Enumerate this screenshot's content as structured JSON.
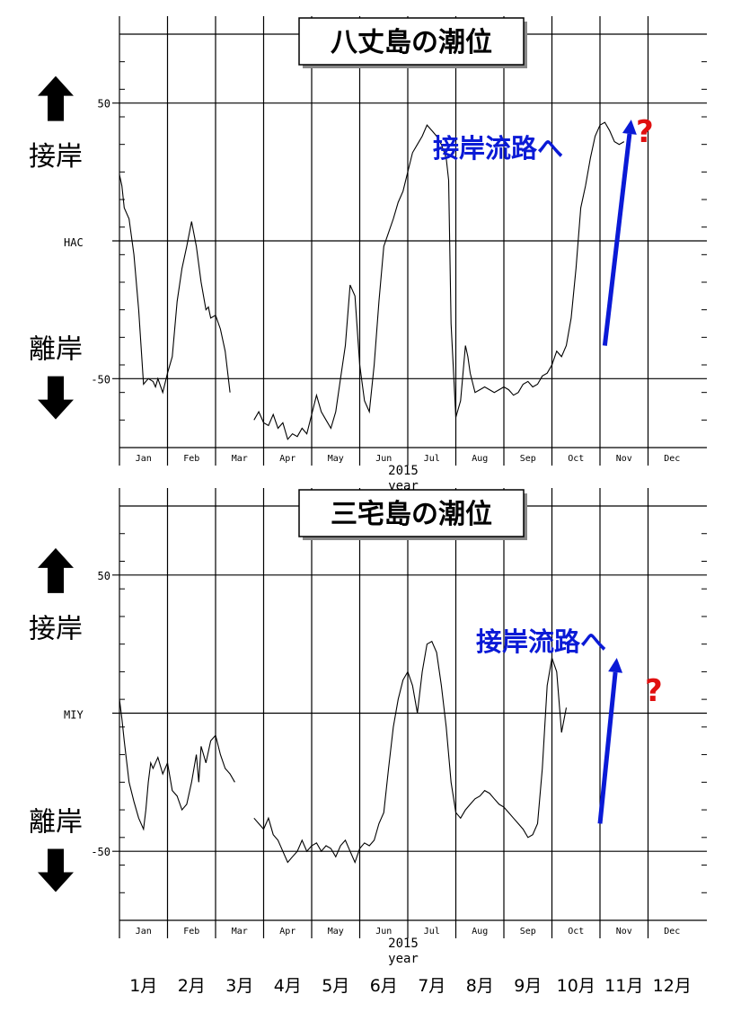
{
  "chart_data": [
    {
      "type": "line",
      "title": "八丈島の潮位",
      "station_label": "HAC",
      "xlabel": "year",
      "year_label": "2015",
      "ylim": [
        -75,
        75
      ],
      "yticks": [
        -50,
        0,
        50
      ],
      "month_ticks": [
        "Jan",
        "Feb",
        "Mar",
        "Apr",
        "May",
        "Jun",
        "Jul",
        "Aug",
        "Sep",
        "Oct",
        "Nov",
        "Dec"
      ],
      "upper_side_label": "接岸",
      "lower_side_label": "離岸",
      "annotation": "接岸流路へ",
      "question_mark": "?",
      "arrow": {
        "from": [
          10.1,
          -38
        ],
        "to": [
          10.65,
          44
        ]
      },
      "series": [
        {
          "x": [
            0.0,
            0.05,
            0.1,
            0.2,
            0.3,
            0.4,
            0.5,
            0.6,
            0.7,
            0.75,
            0.8,
            0.9,
            1.0,
            1.1,
            1.2,
            1.3,
            1.4,
            1.5,
            1.6,
            1.7,
            1.8,
            1.85,
            1.9,
            2.0,
            2.1,
            2.2,
            2.3,
            2.4,
            2.5,
            2.55
          ],
          "y": [
            24,
            20,
            12,
            8,
            -5,
            -25,
            -52,
            -50,
            -51,
            -53,
            -50,
            -55,
            -48,
            -42,
            -22,
            -10,
            -2,
            7,
            -2,
            -15,
            -25,
            -24,
            -28,
            -27,
            -32,
            -40,
            -55,
            null,
            null,
            null
          ]
        },
        {
          "x": [
            2.8,
            2.9,
            3.0,
            3.1,
            3.2,
            3.3,
            3.4,
            3.5,
            3.6,
            3.7,
            3.8,
            3.9,
            4.0,
            4.1,
            4.2,
            4.3,
            4.4,
            4.5,
            4.6,
            4.7,
            4.8,
            4.9,
            5.0,
            5.1,
            5.2,
            5.3,
            5.4,
            5.5,
            5.6,
            5.7,
            5.8,
            5.9,
            6.0,
            6.1,
            6.2,
            6.3,
            6.4,
            6.5,
            6.6,
            6.7,
            6.8,
            6.85,
            6.9,
            7.0,
            7.1,
            7.2,
            7.25,
            7.3,
            7.4,
            7.5,
            7.6,
            7.7,
            7.8,
            7.9,
            8.0,
            8.1,
            8.2,
            8.3,
            8.4,
            8.5,
            8.6,
            8.7,
            8.8,
            8.9,
            9.0,
            9.1,
            9.2,
            9.3,
            9.4,
            9.5,
            9.6,
            9.7,
            9.8,
            9.9,
            10.0,
            10.1,
            10.2,
            10.3,
            10.4,
            10.5,
            10.6,
            10.7,
            10.8,
            10.9,
            11.0,
            11.1,
            11.2
          ],
          "y": [
            -65,
            -62,
            -66,
            -67,
            -63,
            -68,
            -66,
            -72,
            -70,
            -71,
            -68,
            -70,
            -63,
            -56,
            -62,
            -65,
            -68,
            -62,
            -50,
            -38,
            -16,
            -20,
            -45,
            -58,
            -62,
            -45,
            -22,
            -2,
            3,
            8,
            14,
            18,
            25,
            32,
            35,
            38,
            42,
            40,
            38,
            35,
            30,
            22,
            -30,
            -64,
            -58,
            -38,
            -42,
            -48,
            -55,
            -54,
            -53,
            -54,
            -55,
            -54,
            -53,
            -54,
            -56,
            -55,
            -52,
            -51,
            -53,
            -52,
            -49,
            -48,
            -45,
            -40,
            -42,
            -38,
            -28,
            -10,
            12,
            20,
            30,
            38,
            42,
            43,
            40,
            36,
            35,
            36,
            null,
            null,
            null,
            null,
            null,
            null,
            null
          ]
        }
      ]
    },
    {
      "type": "line",
      "title": "三宅島の潮位",
      "station_label": "MIY",
      "xlabel": "year",
      "year_label": "2015",
      "ylim": [
        -75,
        75
      ],
      "yticks": [
        -50,
        0,
        50
      ],
      "month_ticks": [
        "Jan",
        "Feb",
        "Mar",
        "Apr",
        "May",
        "Jun",
        "Jul",
        "Aug",
        "Sep",
        "Oct",
        "Nov",
        "Dec"
      ],
      "upper_side_label": "接岸",
      "lower_side_label": "離岸",
      "annotation": "接岸流路へ",
      "question_mark": "?",
      "arrow": {
        "from": [
          10.0,
          -40
        ],
        "to": [
          10.35,
          20
        ]
      },
      "series": [
        {
          "x": [
            0.0,
            0.05,
            0.1,
            0.2,
            0.3,
            0.4,
            0.5,
            0.55,
            0.6,
            0.65,
            0.7,
            0.8,
            0.9,
            1.0,
            1.1,
            1.2,
            1.3,
            1.4,
            1.5,
            1.6,
            1.65,
            1.7,
            1.8,
            1.9,
            2.0,
            2.1,
            2.2,
            2.3,
            2.4,
            2.5
          ],
          "y": [
            5,
            -2,
            -10,
            -25,
            -32,
            -38,
            -42,
            -35,
            -25,
            -18,
            -20,
            -16,
            -22,
            -18,
            -28,
            -30,
            -35,
            -33,
            -25,
            -15,
            -25,
            -12,
            -18,
            -10,
            -8,
            -15,
            -20,
            -22,
            -25,
            null
          ]
        },
        {
          "x": [
            2.8,
            2.9,
            3.0,
            3.1,
            3.2,
            3.3,
            3.4,
            3.5,
            3.6,
            3.7,
            3.8,
            3.9,
            4.0,
            4.1,
            4.2,
            4.3,
            4.4,
            4.5,
            4.6,
            4.7,
            4.8,
            4.9,
            5.0,
            5.1,
            5.2,
            5.3,
            5.4,
            5.5,
            5.6,
            5.7,
            5.8,
            5.9,
            6.0,
            6.1,
            6.2,
            6.3,
            6.4,
            6.5,
            6.6,
            6.7,
            6.8,
            6.9,
            7.0,
            7.1,
            7.2,
            7.3,
            7.4,
            7.5,
            7.6,
            7.7,
            7.8,
            7.9,
            8.0,
            8.1,
            8.2,
            8.3,
            8.4,
            8.5,
            8.6,
            8.7,
            8.8,
            8.9,
            9.0,
            9.1,
            9.2,
            9.3,
            9.4,
            9.5,
            9.6,
            9.7,
            9.8,
            9.9,
            10.0,
            10.1,
            10.2,
            10.3,
            10.4,
            10.5,
            10.6,
            10.7,
            10.8
          ],
          "y": [
            -38,
            -40,
            -42,
            -38,
            -44,
            -46,
            -50,
            -54,
            -52,
            -50,
            -46,
            -50,
            -48,
            -47,
            -50,
            -48,
            -49,
            -52,
            -48,
            -46,
            -50,
            -54,
            -49,
            -47,
            -48,
            -46,
            -40,
            -36,
            -20,
            -5,
            5,
            12,
            15,
            10,
            0,
            15,
            25,
            26,
            22,
            10,
            -5,
            -25,
            -36,
            -38,
            -35,
            -33,
            -31,
            -30,
            -28,
            -29,
            -31,
            -33,
            -34,
            -36,
            -38,
            -40,
            -42,
            -45,
            -44,
            -40,
            -20,
            10,
            20,
            15,
            -7,
            2,
            null,
            null,
            null,
            null,
            null,
            null,
            null,
            null,
            null,
            null,
            null,
            null,
            null,
            null,
            null
          ]
        }
      ]
    }
  ],
  "bottom_month_labels": [
    "1月",
    "2月",
    "3月",
    "4月",
    "5月",
    "6月",
    "7月",
    "8月",
    "9月",
    "10月",
    "11月",
    "12月"
  ],
  "colors": {
    "line": "#000000",
    "annotation": "#0a1ad6",
    "arrow": "#0a1ad6",
    "question": "#e01010"
  }
}
